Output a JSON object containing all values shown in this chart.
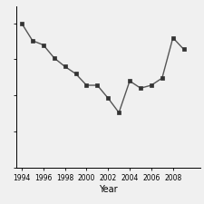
{
  "x": [
    1994,
    1995,
    1996,
    1997,
    1998,
    1999,
    2000,
    2001,
    2002,
    2003,
    2004,
    2005,
    2006,
    2007,
    2008,
    2009
  ],
  "y": [
    100,
    88,
    85,
    76,
    70,
    65,
    57,
    57,
    48,
    38,
    60,
    55,
    57,
    62,
    90,
    82
  ],
  "xlabel": "Year",
  "xticks": [
    1994,
    1996,
    1998,
    2000,
    2002,
    2004,
    2006,
    2008
  ],
  "line_color": "#555555",
  "marker": "s",
  "marker_size": 2.5,
  "marker_color": "#333333",
  "background_color": "#f0f0f0",
  "linewidth": 1.0,
  "ylim": [
    0,
    112
  ],
  "xlim": [
    1993.5,
    2010.5
  ]
}
